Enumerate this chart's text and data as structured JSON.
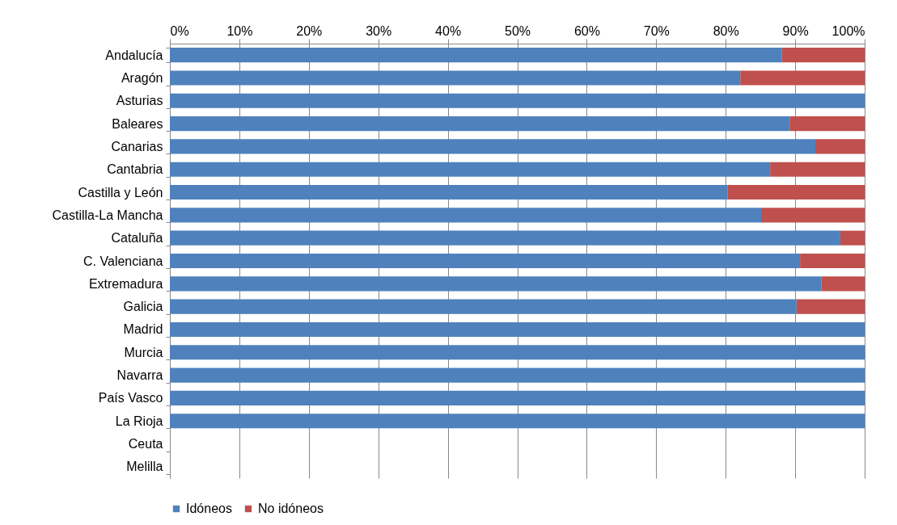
{
  "chart_data": {
    "type": "bar",
    "orientation": "horizontal",
    "stacked": true,
    "categories": [
      "Andalucía",
      "Aragón",
      "Asturias",
      "Baleares",
      "Canarias",
      "Cantabria",
      "Castilla y León",
      "Castilla-La Mancha",
      "Cataluña",
      "C. Valenciana",
      "Extremadura",
      "Galicia",
      "Madrid",
      "Murcia",
      "Navarra",
      "País Vasco",
      "La Rioja",
      "Ceuta",
      "Melilla"
    ],
    "series": [
      {
        "name": "Idóneos",
        "color": "#4f81bd",
        "values": [
          88.1,
          82.1,
          100,
          89.2,
          92.9,
          86.4,
          80.3,
          85.1,
          96.5,
          90.7,
          93.8,
          90.2,
          100,
          100,
          100,
          100,
          100,
          null,
          null
        ]
      },
      {
        "name": "No idóneos",
        "color": "#c0504d",
        "values": [
          11.9,
          17.9,
          0,
          10.8,
          7.1,
          13.6,
          19.7,
          14.9,
          3.5,
          9.3,
          6.2,
          9.8,
          0,
          0,
          0,
          0,
          0,
          null,
          null
        ]
      }
    ],
    "xlim": [
      0,
      100
    ],
    "xticks": [
      {
        "value": 0,
        "label": "0%"
      },
      {
        "value": 10,
        "label": "10%"
      },
      {
        "value": 20,
        "label": "20%"
      },
      {
        "value": 30,
        "label": "30%"
      },
      {
        "value": 40,
        "label": "40%"
      },
      {
        "value": 50,
        "label": "50%"
      },
      {
        "value": 60,
        "label": "60%"
      },
      {
        "value": 70,
        "label": "70%"
      },
      {
        "value": 80,
        "label": "80%"
      },
      {
        "value": 90,
        "label": "90%"
      },
      {
        "value": 100,
        "label": "100%"
      }
    ],
    "grid": "x",
    "legend": "bottom"
  }
}
